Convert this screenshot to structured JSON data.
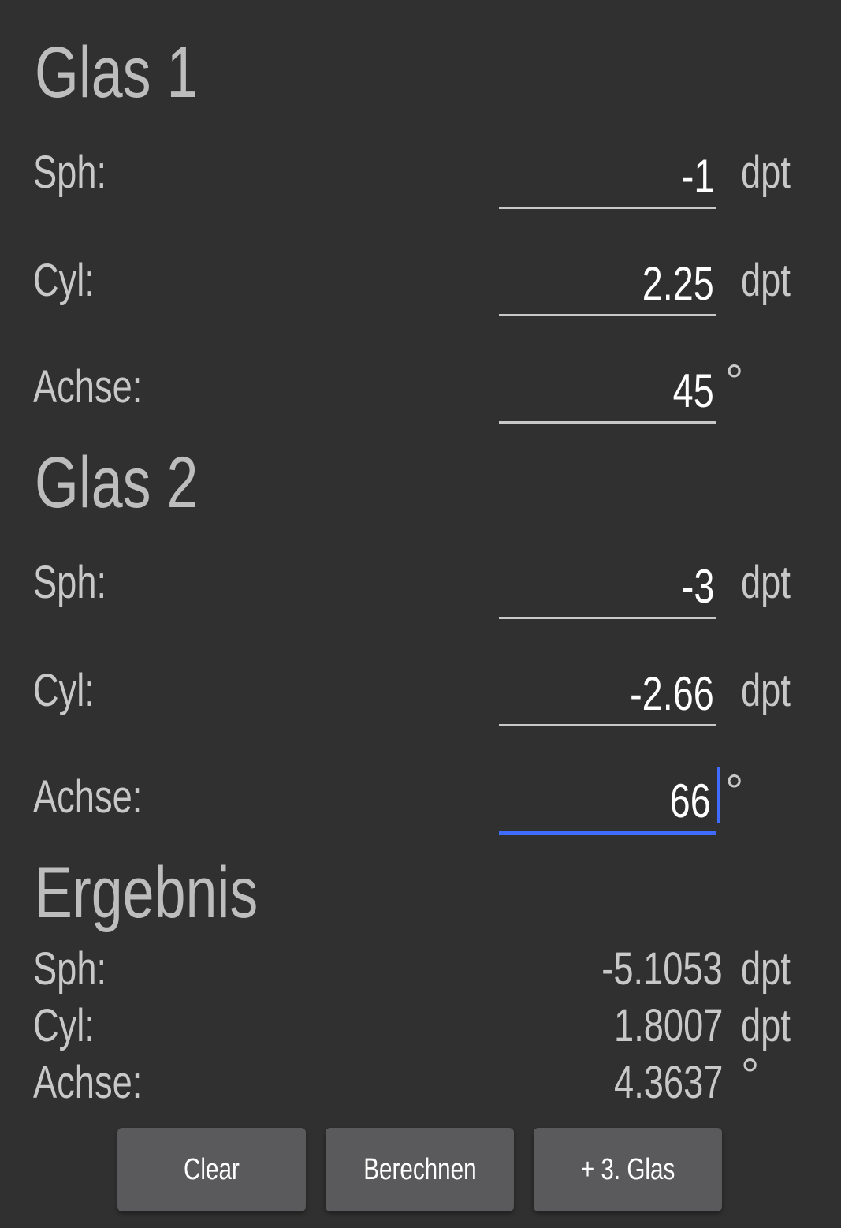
{
  "glas1": {
    "title": "Glas 1",
    "sph": {
      "label": "Sph:",
      "value": "-1",
      "unit": "dpt"
    },
    "cyl": {
      "label": "Cyl:",
      "value": "2.25",
      "unit": "dpt"
    },
    "achse": {
      "label": "Achse:",
      "value": "45",
      "unit": "°"
    }
  },
  "glas2": {
    "title": "Glas 2",
    "sph": {
      "label": "Sph:",
      "value": "-3",
      "unit": "dpt"
    },
    "cyl": {
      "label": "Cyl:",
      "value": "-2.66",
      "unit": "dpt"
    },
    "achse": {
      "label": "Achse:",
      "value": "66",
      "unit": "°"
    }
  },
  "ergebnis": {
    "title": "Ergebnis",
    "sph": {
      "label": "Sph:",
      "value": "-5.1053",
      "unit": "dpt"
    },
    "cyl": {
      "label": "Cyl:",
      "value": "1.8007",
      "unit": "dpt"
    },
    "achse": {
      "label": "Achse:",
      "value": "4.3637",
      "unit": "°"
    }
  },
  "buttons": {
    "clear": "Clear",
    "calculate": "Berechnen",
    "add_glass": "+ 3. Glas"
  },
  "colors": {
    "focus": "#3f6cff",
    "background": "#303030",
    "button": "#5a5a5c"
  }
}
